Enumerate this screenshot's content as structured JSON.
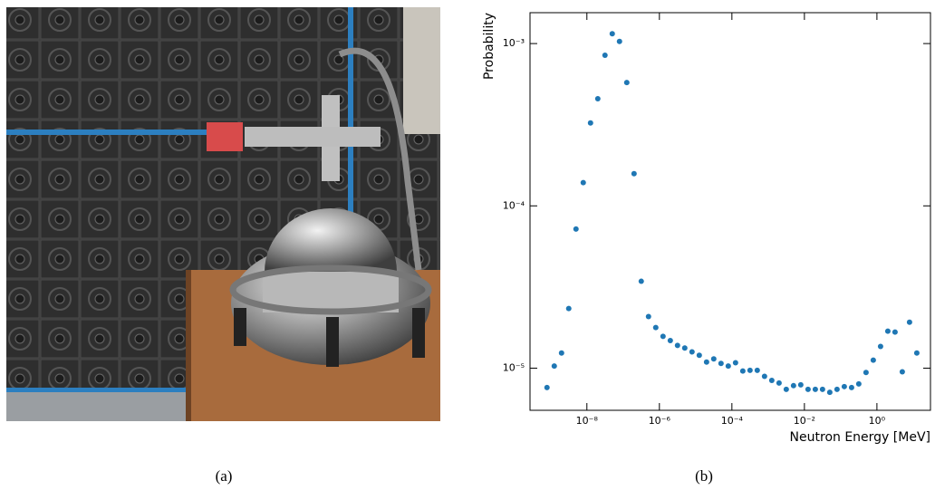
{
  "captions": [
    "(a)",
    "(b)"
  ],
  "chart_data": {
    "type": "scatter",
    "xlabel": "Neutron Energy [MeV]",
    "ylabel": "Probability",
    "xscale": "log",
    "yscale": "log",
    "color": "#1f77b4",
    "xlim": [
      2.7e-10,
      30
    ],
    "ylim": [
      5.5e-06,
      0.00155
    ],
    "xticks": [
      {
        "value": 1e-08,
        "label": "10⁻⁸"
      },
      {
        "value": 1e-06,
        "label": "10⁻⁶"
      },
      {
        "value": 0.0001,
        "label": "10⁻⁴"
      },
      {
        "value": 0.01,
        "label": "10⁻²"
      },
      {
        "value": 1,
        "label": "10⁰"
      }
    ],
    "yticks": [
      {
        "value": 1e-05,
        "label": "10⁻⁵"
      },
      {
        "value": 0.0001,
        "label": "10⁻⁴"
      },
      {
        "value": 0.001,
        "label": "10⁻³"
      }
    ],
    "x": [
      7.94e-10,
      1.26e-09,
      2e-09,
      3.16e-09,
      5.01e-09,
      7.94e-09,
      1.26e-08,
      2e-08,
      3.16e-08,
      5.01e-08,
      7.94e-08,
      1.26e-07,
      2e-07,
      3.16e-07,
      5.01e-07,
      7.94e-07,
      1.26e-06,
      2e-06,
      3.16e-06,
      5.01e-06,
      7.94e-06,
      1.26e-05,
      2e-05,
      3.16e-05,
      5.01e-05,
      7.94e-05,
      0.000126,
      0.0002,
      0.000316,
      0.000501,
      0.000794,
      0.00126,
      0.002,
      0.00316,
      0.00501,
      0.00794,
      0.0126,
      0.02,
      0.0316,
      0.0501,
      0.0794,
      0.126,
      0.2,
      0.316,
      0.501,
      0.794,
      1.26,
      2.0,
      3.16,
      5.01,
      7.94,
      12.6
    ],
    "values": [
      7.6e-06,
      1.03e-05,
      1.24e-05,
      2.33e-05,
      7.2e-05,
      0.000139,
      0.000324,
      0.000457,
      0.000847,
      0.00115,
      0.00103,
      0.000575,
      0.000158,
      3.43e-05,
      2.08e-05,
      1.78e-05,
      1.57e-05,
      1.48e-05,
      1.38e-05,
      1.33e-05,
      1.26e-05,
      1.2e-05,
      1.09e-05,
      1.14e-05,
      1.07e-05,
      1.03e-05,
      1.08e-05,
      9.6e-06,
      9.7e-06,
      9.7e-06,
      8.9e-06,
      8.4e-06,
      8.1e-06,
      7.4e-06,
      7.8e-06,
      7.9e-06,
      7.4e-06,
      7.4e-06,
      7.4e-06,
      7.1e-06,
      7.4e-06,
      7.7e-06,
      7.6e-06,
      8e-06,
      9.4e-06,
      1.12e-05,
      1.36e-05,
      1.69e-05,
      1.67e-05,
      9.5e-06,
      1.92e-05,
      1.24e-05
    ]
  }
}
